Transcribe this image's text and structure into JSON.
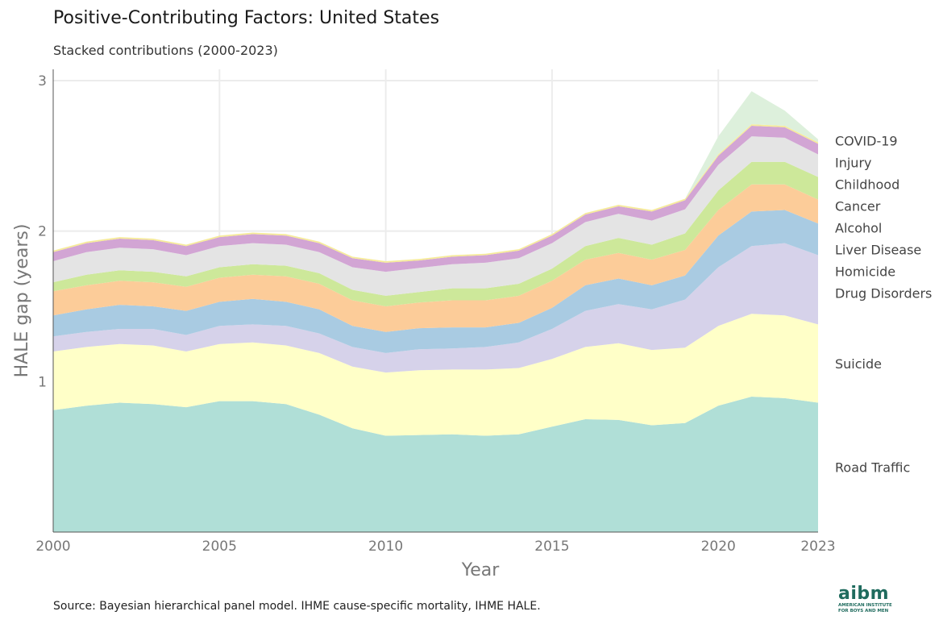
{
  "title": "Positive-Contributing Factors: United States",
  "subtitle": "Stacked contributions (2000-2023)",
  "source": "Source: Bayesian hierarchical panel model. IHME cause-specific mortality, IHME HALE.",
  "logo": {
    "mark": "aibm",
    "line1": "AMERICAN INSTITUTE",
    "line2": "FOR BOYS AND MEN"
  },
  "chart_data": {
    "type": "area",
    "stacked": true,
    "xlabel": "Year",
    "ylabel": "HALE gap (years)",
    "xlim": [
      2000,
      2023
    ],
    "ylim": [
      0,
      3.05
    ],
    "x_ticks": [
      "2000",
      "2005",
      "2010",
      "2015",
      "2020",
      "2023"
    ],
    "y_ticks": [
      "1",
      "2",
      "3"
    ],
    "grid": true,
    "legend": "direct labels on right",
    "x": [
      2000,
      2001,
      2002,
      2003,
      2004,
      2005,
      2006,
      2007,
      2008,
      2009,
      2010,
      2011,
      2012,
      2013,
      2014,
      2015,
      2016,
      2017,
      2018,
      2019,
      2020,
      2021,
      2022,
      2023
    ],
    "series": [
      {
        "name": "Road Traffic",
        "color": "#b0dfd7",
        "values": [
          0.81,
          0.84,
          0.86,
          0.85,
          0.83,
          0.87,
          0.87,
          0.85,
          0.78,
          0.69,
          0.64,
          0.645,
          0.65,
          0.64,
          0.65,
          0.7,
          0.75,
          0.745,
          0.71,
          0.725,
          0.84,
          0.9,
          0.89,
          0.86
        ]
      },
      {
        "name": "Suicide",
        "color": "#ffffc8",
        "values": [
          0.39,
          0.39,
          0.39,
          0.39,
          0.37,
          0.38,
          0.39,
          0.39,
          0.41,
          0.41,
          0.42,
          0.43,
          0.43,
          0.44,
          0.44,
          0.45,
          0.48,
          0.51,
          0.5,
          0.5,
          0.53,
          0.55,
          0.55,
          0.52
        ]
      },
      {
        "name": "Drug Disorders",
        "color": "#d6d2ea",
        "values": [
          0.1,
          0.1,
          0.1,
          0.11,
          0.11,
          0.12,
          0.12,
          0.13,
          0.13,
          0.13,
          0.13,
          0.14,
          0.14,
          0.15,
          0.17,
          0.2,
          0.24,
          0.26,
          0.27,
          0.32,
          0.39,
          0.45,
          0.48,
          0.46
        ]
      },
      {
        "name": "Homicide",
        "color": "#a9cbe2",
        "values": [
          0.14,
          0.15,
          0.16,
          0.15,
          0.16,
          0.16,
          0.17,
          0.16,
          0.16,
          0.14,
          0.14,
          0.14,
          0.14,
          0.13,
          0.13,
          0.14,
          0.17,
          0.17,
          0.16,
          0.16,
          0.21,
          0.23,
          0.22,
          0.21
        ]
      },
      {
        "name": "Liver Disease",
        "color": "#fccc99",
        "values": [
          0.16,
          0.16,
          0.16,
          0.16,
          0.16,
          0.16,
          0.16,
          0.17,
          0.17,
          0.17,
          0.17,
          0.17,
          0.18,
          0.18,
          0.18,
          0.18,
          0.17,
          0.17,
          0.17,
          0.17,
          0.17,
          0.18,
          0.17,
          0.16
        ]
      },
      {
        "name": "Alcohol",
        "color": "#cde89a",
        "values": [
          0.06,
          0.07,
          0.07,
          0.07,
          0.07,
          0.07,
          0.07,
          0.07,
          0.07,
          0.07,
          0.07,
          0.07,
          0.08,
          0.08,
          0.08,
          0.08,
          0.09,
          0.1,
          0.1,
          0.11,
          0.13,
          0.15,
          0.15,
          0.15
        ]
      },
      {
        "name": "Cancer",
        "color": "#e4e4e4",
        "values": [
          0.14,
          0.15,
          0.15,
          0.15,
          0.14,
          0.14,
          0.14,
          0.14,
          0.14,
          0.15,
          0.16,
          0.16,
          0.16,
          0.17,
          0.17,
          0.17,
          0.16,
          0.16,
          0.16,
          0.16,
          0.17,
          0.17,
          0.16,
          0.15
        ]
      },
      {
        "name": "Childhood",
        "color": "#d2a5d4",
        "values": [
          0.06,
          0.06,
          0.06,
          0.06,
          0.06,
          0.06,
          0.06,
          0.06,
          0.06,
          0.06,
          0.06,
          0.05,
          0.05,
          0.05,
          0.05,
          0.05,
          0.05,
          0.05,
          0.06,
          0.06,
          0.06,
          0.07,
          0.07,
          0.07
        ]
      },
      {
        "name": "Injury",
        "color": "#f6eb9a",
        "values": [
          0.01,
          0.01,
          0.01,
          0.01,
          0.01,
          0.01,
          0.01,
          0.01,
          0.01,
          0.01,
          0.01,
          0.01,
          0.01,
          0.01,
          0.01,
          0.01,
          0.01,
          0.01,
          0.01,
          0.01,
          0.01,
          0.01,
          0.01,
          0.01
        ]
      },
      {
        "name": "COVID-19",
        "color": "#ddf0dc",
        "values": [
          0,
          0,
          0,
          0,
          0,
          0,
          0,
          0,
          0,
          0,
          0,
          0,
          0,
          0,
          0,
          0,
          0,
          0,
          0,
          0,
          0.12,
          0.22,
          0.1,
          0.02
        ]
      }
    ],
    "label_order": [
      "COVID-19",
      "Injury",
      "Childhood",
      "Cancer",
      "Alcohol",
      "Liver Disease",
      "Homicide",
      "Drug Disorders",
      "Suicide",
      "Road Traffic"
    ]
  }
}
